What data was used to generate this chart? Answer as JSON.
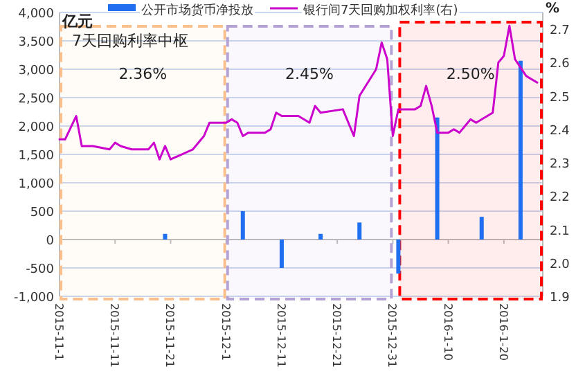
{
  "chart_data": {
    "type": "bar",
    "ylabel": "亿元",
    "y2label": "%",
    "annotations": [
      "7天回购利率中枢"
    ],
    "xlim": [
      "2015-11-01",
      "2016-01-27"
    ],
    "xticks": [
      {
        "value": "2015-11-01",
        "label": "2015-11-1"
      },
      {
        "value": "2015-11-11",
        "label": "2015-11-11"
      },
      {
        "value": "2015-11-21",
        "label": "2015-11-21"
      },
      {
        "value": "2015-12-01",
        "label": "2015-12-1"
      },
      {
        "value": "2015-12-11",
        "label": "2015-12-11"
      },
      {
        "value": "2015-12-21",
        "label": "2015-12-21"
      },
      {
        "value": "2015-12-31",
        "label": "2015-12-31"
      },
      {
        "value": "2016-01-10",
        "label": "2016-1-10"
      },
      {
        "value": "2016-01-20",
        "label": "2016-1-20"
      }
    ],
    "ylim": [
      -1000,
      4000
    ],
    "yticks": [
      {
        "value": -1000,
        "label": "-1,000"
      },
      -500,
      0,
      500,
      {
        "value": 1000,
        "label": "1,000"
      },
      {
        "value": 1500,
        "label": "1,500"
      },
      {
        "value": 2000,
        "label": "2,000"
      },
      {
        "value": 2500,
        "label": "2,500"
      },
      {
        "value": 3000,
        "label": "3,000"
      },
      {
        "value": 3500,
        "label": "3,500"
      },
      {
        "value": 4000,
        "label": "4,000"
      }
    ],
    "y2lim": [
      1.9,
      2.75
    ],
    "y2ticks": [
      1.9,
      {
        "value": 2,
        "label": "2.0"
      },
      2.1,
      2.2,
      2.3,
      2.4,
      2.5,
      2.6,
      2.7
    ],
    "grid": "y",
    "legend": "top",
    "series": [
      {
        "name": "公开市场货币净投放",
        "color": "#1f6ff0",
        "x": [
          "2015-11-20",
          "2015-12-04",
          "2015-12-11",
          "2015-12-18",
          "2015-12-25",
          "2016-01-01",
          "2016-01-08",
          "2016-01-16",
          "2016-01-23"
        ],
        "values": [
          100,
          500,
          -500,
          100,
          300,
          -600,
          2150,
          400,
          3150
        ]
      },
      {
        "name": "银行间7天回购加权利率(右)",
        "type": "line",
        "axis": "y2",
        "color": "#cc00cc",
        "x": [
          "2015-11-01",
          "2015-11-02",
          "2015-11-04",
          "2015-11-05",
          "2015-11-07",
          "2015-11-10",
          "2015-11-11",
          "2015-11-12",
          "2015-11-14",
          "2015-11-17",
          "2015-11-18",
          "2015-11-19",
          "2015-11-20",
          "2015-11-21",
          "2015-11-25",
          "2015-11-27",
          "2015-11-28",
          "2015-11-29",
          "2015-11-30",
          "2015-12-01",
          "2015-12-02",
          "2015-12-03",
          "2015-12-04",
          "2015-12-05",
          "2015-12-08",
          "2015-12-09",
          "2015-12-10",
          "2015-12-11",
          "2015-12-14",
          "2015-12-16",
          "2015-12-17",
          "2015-12-18",
          "2015-12-22",
          "2015-12-24",
          "2015-12-25",
          "2015-12-28",
          "2015-12-29",
          "2015-12-30",
          "2015-12-31",
          "2016-01-01",
          "2016-01-04",
          "2016-01-05",
          "2016-01-06",
          "2016-01-07",
          "2016-01-08",
          "2016-01-10",
          "2016-01-11",
          "2016-01-12",
          "2016-01-13",
          "2016-01-14",
          "2016-01-15",
          "2016-01-18",
          "2016-01-19",
          "2016-01-20",
          "2016-01-21",
          "2016-01-22",
          "2016-01-24",
          "2016-01-26"
        ],
        "values": [
          2.37,
          2.37,
          2.44,
          2.35,
          2.35,
          2.34,
          2.36,
          2.35,
          2.34,
          2.34,
          2.36,
          2.31,
          2.35,
          2.31,
          2.34,
          2.38,
          2.42,
          2.42,
          2.42,
          2.42,
          2.43,
          2.42,
          2.38,
          2.39,
          2.39,
          2.4,
          2.45,
          2.44,
          2.44,
          2.42,
          2.47,
          2.45,
          2.46,
          2.38,
          2.5,
          2.58,
          2.66,
          2.61,
          2.38,
          2.46,
          2.46,
          2.47,
          2.53,
          2.47,
          2.39,
          2.39,
          2.4,
          2.39,
          2.41,
          2.43,
          2.42,
          2.45,
          2.6,
          2.62,
          2.71,
          2.61,
          2.56,
          2.54
        ]
      }
    ],
    "bands": [
      {
        "axis": "x",
        "from": "2015-11-01",
        "to": "2015-12-01",
        "label": "2.36%",
        "color": "#f9c08e"
      },
      {
        "axis": "x",
        "from": "2015-12-01",
        "to": "2015-12-31",
        "label": "2.45%",
        "color": "#b3a2d3"
      },
      {
        "axis": "x",
        "from": "2016-01-01",
        "to": "2016-01-27",
        "label": "2.50%",
        "color": "#ff0000"
      }
    ]
  }
}
